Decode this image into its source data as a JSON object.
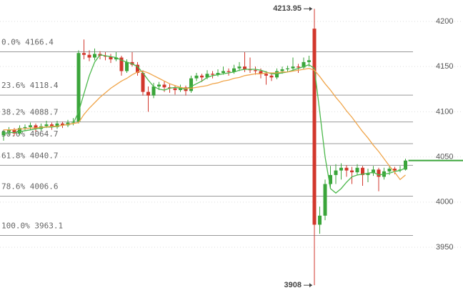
{
  "chart_data": {
    "type": "candlestick",
    "ylim": [
      3899.4,
      4223.7
    ],
    "yticks": [
      3950,
      4000,
      4050,
      4100,
      4150,
      4200
    ],
    "grid": true,
    "up_color": "#3aa53a",
    "down_color": "#d2372c",
    "open": [
      4074,
      4078,
      4080,
      4076,
      4082,
      4083,
      4085,
      4081,
      4084,
      4086,
      4083,
      4087,
      4085,
      4088,
      4089,
      4165,
      4163,
      4160,
      4164,
      4162,
      4161,
      4158,
      4160,
      4145,
      4155,
      4152,
      4143,
      4122,
      4118,
      4128,
      4130,
      4127,
      4126,
      4124,
      4127,
      4123,
      4137,
      4140,
      4138,
      4142,
      4141,
      4143,
      4145,
      4144,
      4148,
      4150,
      4147,
      4146,
      4145,
      4142,
      4140,
      4138,
      4145,
      4147,
      4148,
      4150,
      4149,
      4155,
      4192,
      3975,
      3985,
      4020,
      4030,
      4035,
      4038,
      4035,
      4033,
      4038,
      4030,
      4032,
      4036,
      4028,
      4034,
      4037,
      4035,
      4036
    ],
    "high": [
      4080,
      4083,
      4082,
      4085,
      4086,
      4088,
      4087,
      4087,
      4090,
      4088,
      4090,
      4089,
      4091,
      4093,
      4168,
      4180,
      4168,
      4170,
      4167,
      4166,
      4164,
      4166,
      4162,
      4158,
      4166,
      4155,
      4146,
      4128,
      4132,
      4133,
      4134,
      4131,
      4129,
      4130,
      4129,
      4140,
      4143,
      4142,
      4146,
      4145,
      4147,
      4150,
      4148,
      4152,
      4155,
      4166,
      4160,
      4150,
      4148,
      4145,
      4143,
      4148,
      4150,
      4151,
      4160,
      4153,
      4160,
      4162,
      4213.95,
      3995,
      4025,
      4040,
      4042,
      4043,
      4041,
      4039,
      4042,
      4040,
      4037,
      4040,
      4038,
      4038,
      4040,
      4039,
      4040,
      4048
    ],
    "low": [
      4068,
      4074,
      4073,
      4074,
      4079,
      4080,
      4078,
      4079,
      4082,
      4080,
      4081,
      4082,
      4083,
      4085,
      4087,
      4158,
      4156,
      4157,
      4158,
      4157,
      4154,
      4156,
      4140,
      4143,
      4150,
      4140,
      4118,
      4100,
      4115,
      4124,
      4122,
      4121,
      4119,
      4122,
      4118,
      4121,
      4134,
      4133,
      4136,
      4137,
      4139,
      4141,
      4140,
      4142,
      4145,
      4144,
      4143,
      4141,
      4137,
      4130,
      4134,
      4136,
      4142,
      4144,
      4145,
      4143,
      4147,
      4150,
      3908,
      3965,
      3980,
      4015,
      4020,
      4025,
      4028,
      4020,
      4030,
      4018,
      4022,
      4029,
      4012,
      4025,
      4030,
      4031,
      4033,
      4035
    ],
    "close": [
      4078,
      4080,
      4076,
      4082,
      4083,
      4085,
      4081,
      4084,
      4086,
      4083,
      4087,
      4085,
      4088,
      4089,
      4165,
      4163,
      4160,
      4164,
      4162,
      4161,
      4158,
      4160,
      4145,
      4155,
      4152,
      4143,
      4122,
      4118,
      4128,
      4130,
      4127,
      4126,
      4124,
      4127,
      4123,
      4137,
      4140,
      4138,
      4142,
      4141,
      4143,
      4145,
      4144,
      4148,
      4150,
      4147,
      4146,
      4145,
      4142,
      4140,
      4138,
      4145,
      4147,
      4148,
      4150,
      4149,
      4155,
      4157,
      3975,
      3985,
      4020,
      4030,
      4035,
      4038,
      4035,
      4033,
      4038,
      4030,
      4032,
      4036,
      4028,
      4034,
      4037,
      4035,
      4036,
      4046
    ],
    "series": [
      {
        "color": "#4cb84c",
        "values": [
          4076,
          4077,
          4077,
          4078,
          4079,
          4080,
          4081,
          4082,
          4083,
          4083,
          4084,
          4085,
          4086,
          4087,
          4100,
          4120,
          4140,
          4155,
          4163,
          4162,
          4161,
          4160,
          4157,
          4155,
          4153,
          4150,
          4143,
          4135,
          4128,
          4125,
          4124,
          4126,
          4127,
          4126,
          4125,
          4128,
          4131,
          4134,
          4138,
          4140,
          4141,
          4142,
          4143,
          4144,
          4146,
          4147,
          4147,
          4147,
          4146,
          4144,
          4142,
          4142,
          4143,
          4144,
          4146,
          4148,
          4150,
          4152,
          4148,
          4100,
          4050,
          4015,
          4010,
          4015,
          4022,
          4028,
          4030,
          4031,
          4032,
          4033,
          4030,
          4031,
          4032,
          4034,
          4035,
          4038
        ]
      },
      {
        "color": "#f0a54a",
        "values": [
          4080,
          4080,
          4080,
          4081,
          4081,
          4082,
          4082,
          4083,
          4083,
          4084,
          4084,
          4085,
          4086,
          4087,
          4088,
          4097,
          4104,
          4110,
          4116,
          4121,
          4126,
          4130,
          4134,
          4137,
          4141,
          4144,
          4145,
          4143,
          4140,
          4137,
          4134,
          4131,
          4129,
          4127,
          4126,
          4126,
          4127,
          4128,
          4129,
          4131,
          4132,
          4134,
          4135,
          4137,
          4138,
          4140,
          4141,
          4142,
          4142,
          4143,
          4143,
          4143,
          4144,
          4144,
          4145,
          4146,
          4147,
          4148,
          4146,
          4139,
          4131,
          4124,
          4116,
          4109,
          4101,
          4094,
          4086,
          4078,
          4071,
          4063,
          4056,
          4048,
          4040,
          4033,
          4025,
          4030
        ]
      }
    ],
    "fib_levels": [
      {
        "label": "0.0%",
        "value": 4166.4
      },
      {
        "label": "23.6%",
        "value": 4118.4
      },
      {
        "label": "38.2%",
        "value": 4088.7
      },
      {
        "label": "50.0%",
        "value": 4064.7
      },
      {
        "label": "61.8%",
        "value": 4040.7
      },
      {
        "label": "78.6%",
        "value": 4006.6
      },
      {
        "label": "100.0%",
        "value": 3963.1
      }
    ]
  }
}
